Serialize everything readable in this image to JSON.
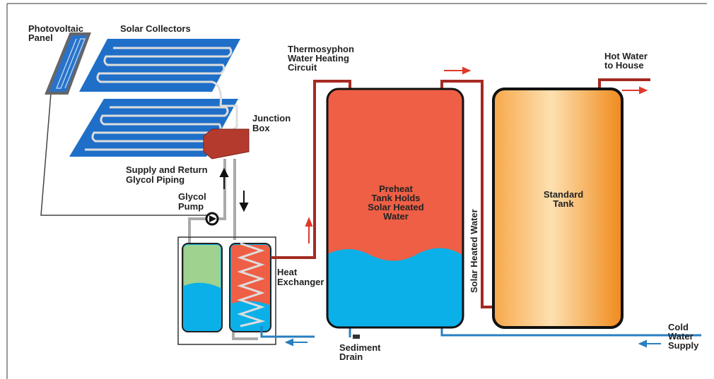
{
  "labels": {
    "photovoltaic_panel": [
      "Photovoltaic",
      "Panel"
    ],
    "solar_collectors": [
      "Solar Collectors"
    ],
    "thermosyphon": [
      "Thermosyphon",
      "Water Heating",
      "Circuit"
    ],
    "hot_water": [
      "Hot Water",
      "to House"
    ],
    "junction_box": [
      "Junction",
      "Box"
    ],
    "glycol_piping": [
      "Supply and Return",
      "Glycol Piping"
    ],
    "glycol_pump": [
      "Glycol",
      "Pump"
    ],
    "heat_exchanger": [
      "Heat",
      "Exchanger"
    ],
    "preheat_tank": [
      "Preheat",
      "Tank Holds",
      "Solar Heated",
      "Water"
    ],
    "solar_heated_water": [
      "Solar Heated Water"
    ],
    "standard_tank": [
      "Standard",
      "Tank"
    ],
    "cold_water": [
      "Cold",
      "Water",
      "Supply"
    ],
    "sediment_drain": [
      "Sediment",
      "Drain"
    ]
  }
}
